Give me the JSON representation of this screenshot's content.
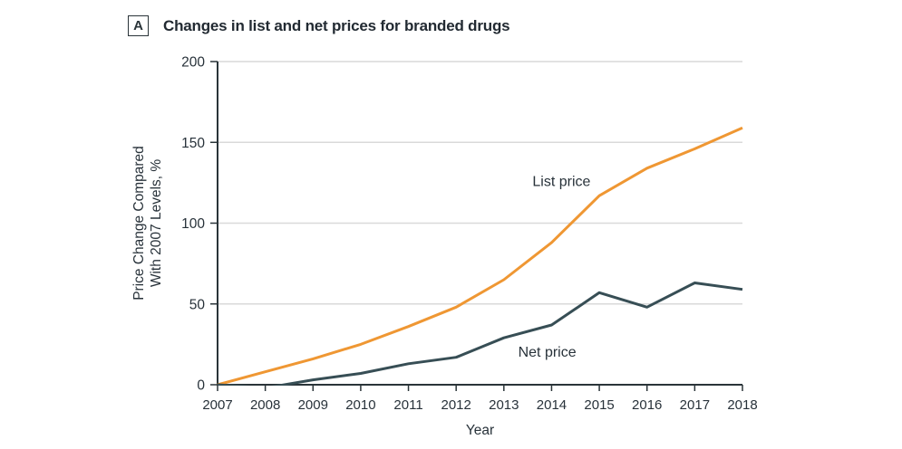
{
  "figure": {
    "panel_label": "A",
    "title": "Changes in list and net prices for branded drugs"
  },
  "chart_data": {
    "type": "line",
    "title": "Changes in list and net prices for branded drugs",
    "xlabel": "Year",
    "ylabel_lines": [
      "Price Change Compared",
      "With 2007 Levels, %"
    ],
    "x": [
      2007,
      2008,
      2009,
      2010,
      2011,
      2012,
      2013,
      2014,
      2015,
      2016,
      2017,
      2018
    ],
    "ylim": [
      0,
      200
    ],
    "yticks": [
      0,
      50,
      100,
      150,
      200
    ],
    "grid": "horizontal-light",
    "legend": "inline-annotations",
    "series": [
      {
        "name": "List price",
        "key": "list-price",
        "color": "#EF9733",
        "values": [
          0,
          8,
          16,
          25,
          36,
          48,
          65,
          88,
          117,
          134,
          146,
          159
        ],
        "label_anchor": {
          "year": 2013.6,
          "value": 123
        }
      },
      {
        "name": "Net price",
        "key": "net-price",
        "color": "#374E55",
        "values": [
          0,
          -2,
          3,
          7,
          13,
          17,
          29,
          37,
          57,
          48,
          63,
          59
        ],
        "label_anchor": {
          "year": 2013.3,
          "value": 17.5
        }
      }
    ],
    "colors": {
      "grid": "#D9D9D9",
      "axis": "#2A3439",
      "text": "#28323A"
    }
  }
}
